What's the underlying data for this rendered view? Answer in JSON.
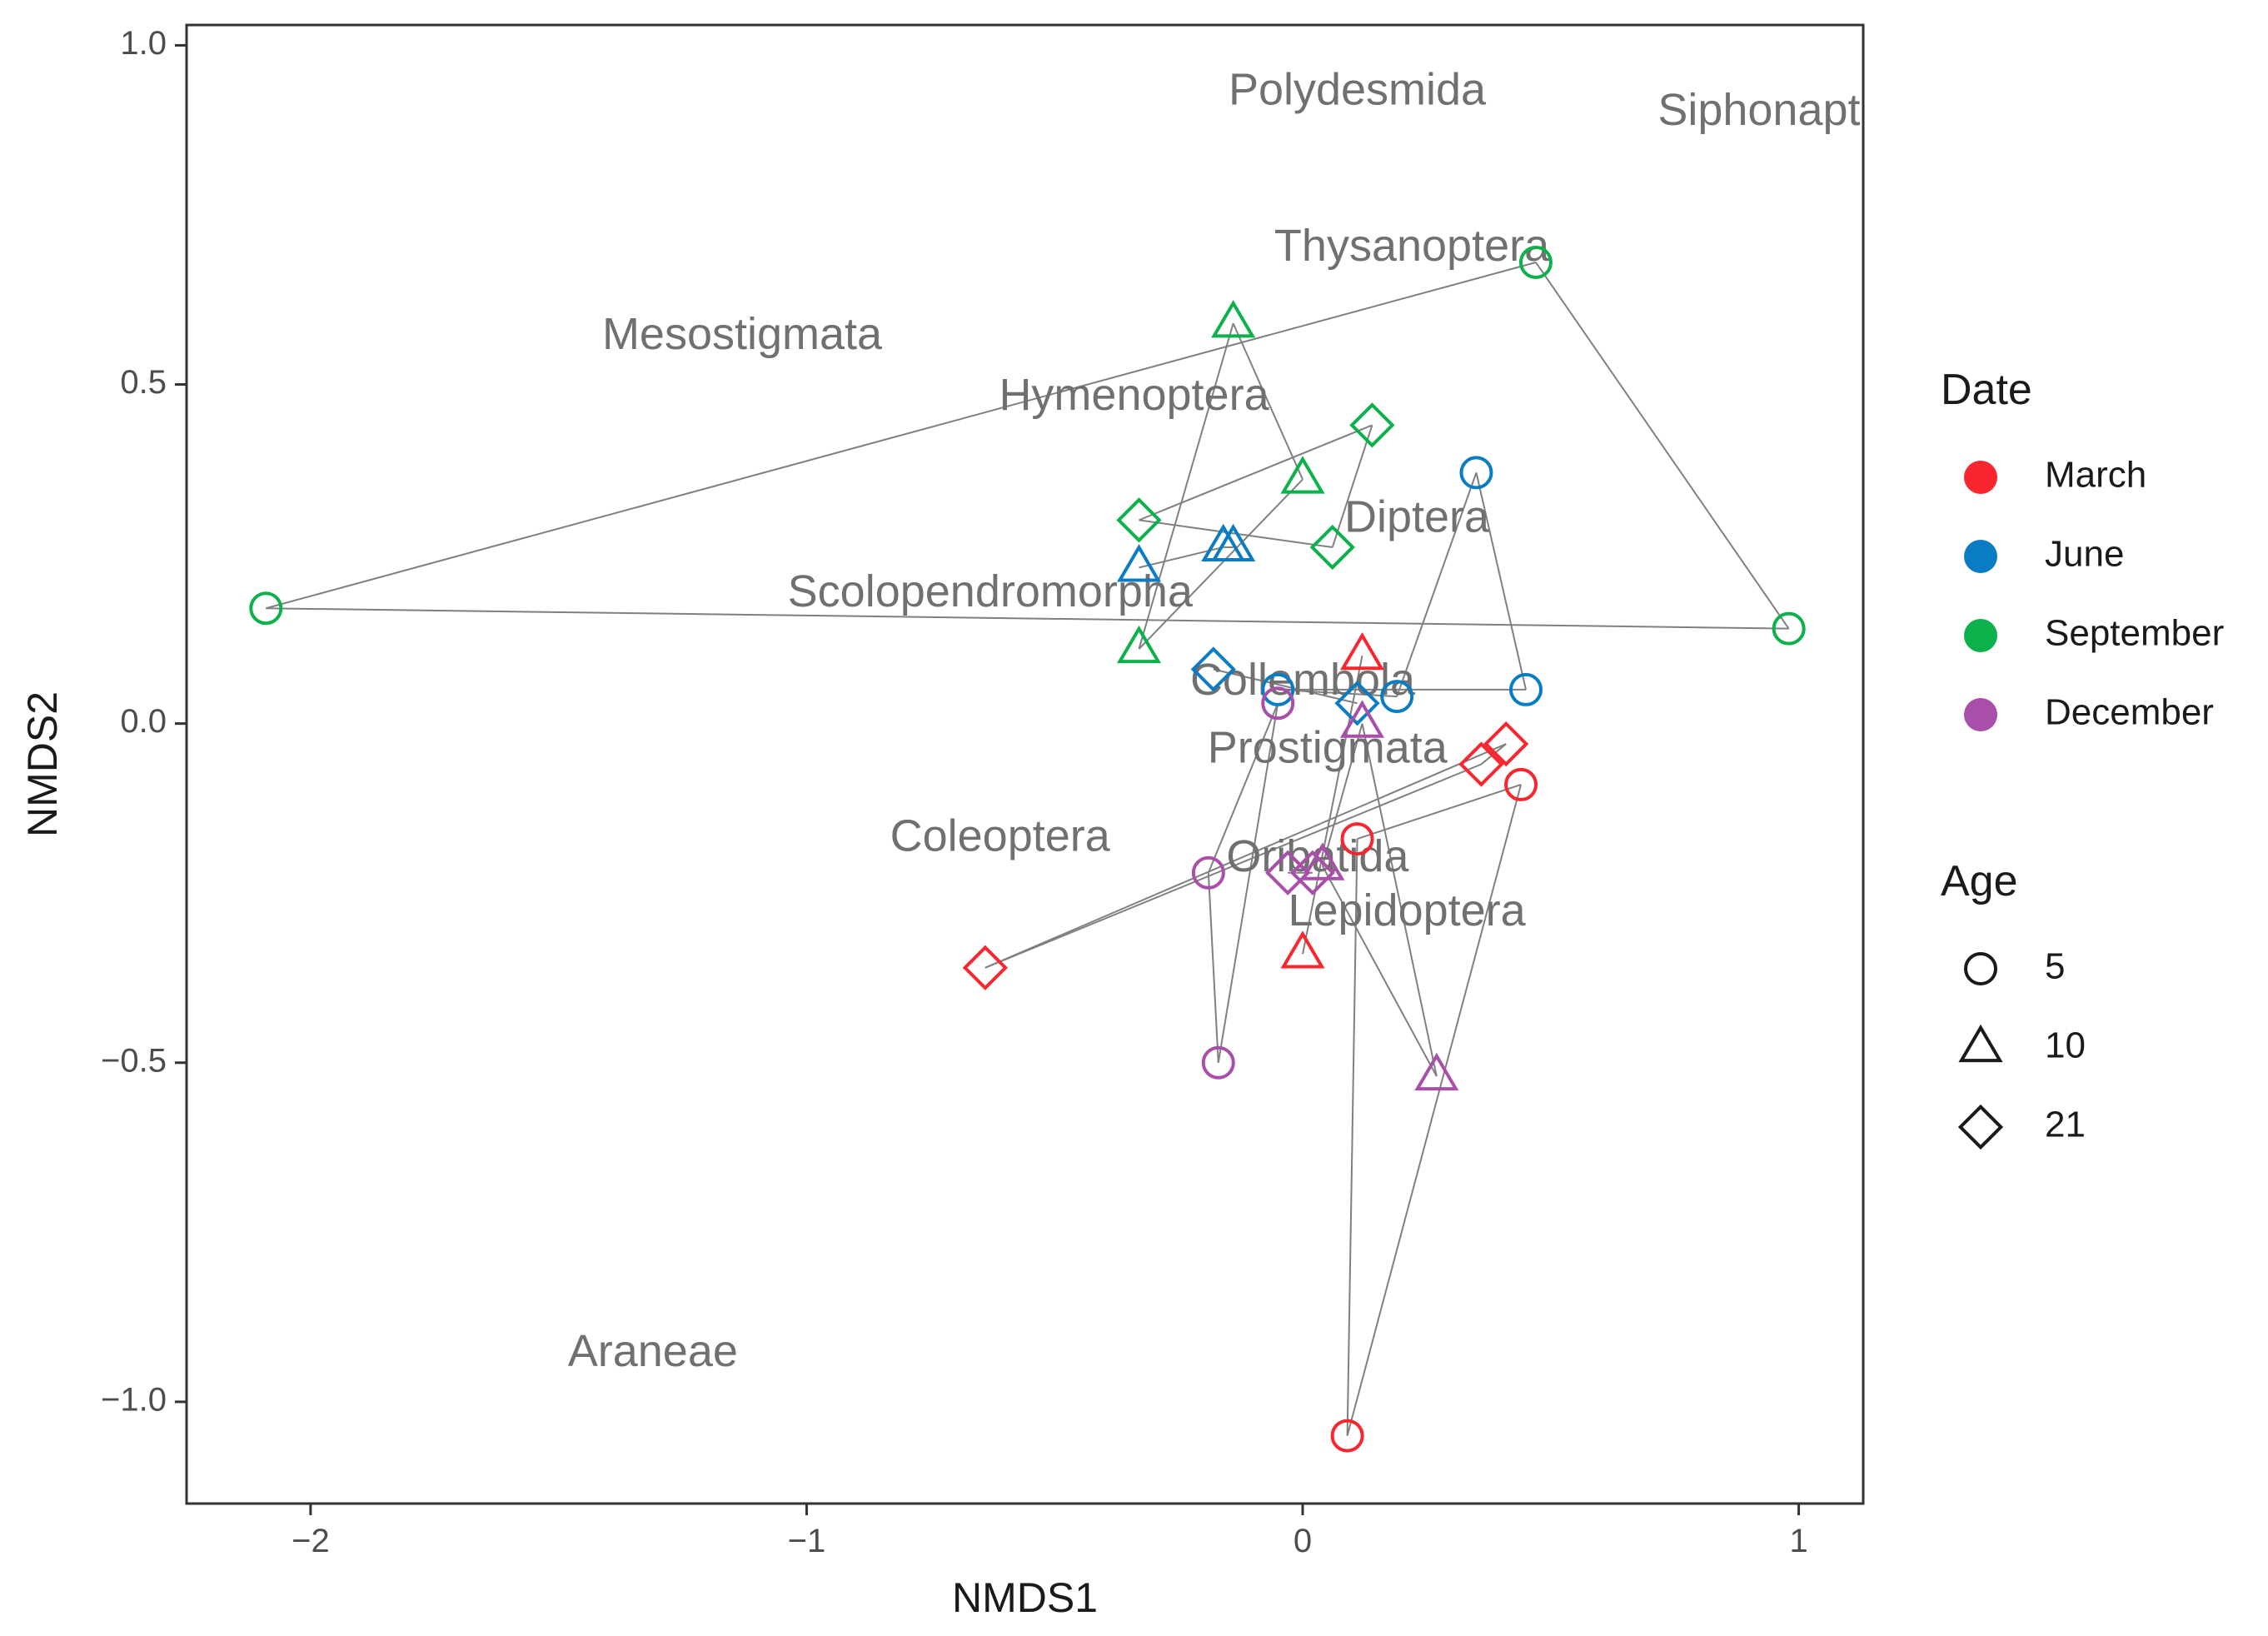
{
  "chart_data": {
    "type": "scatter",
    "title": "",
    "xlabel": "NMDS1",
    "ylabel": "NMDS2",
    "xlim": [
      -2.25,
      1.13
    ],
    "ylim": [
      -1.15,
      1.03
    ],
    "xticks": [
      -2,
      -1,
      0,
      1
    ],
    "yticks": [
      -1.0,
      -0.5,
      0.0,
      0.5,
      1.0
    ],
    "xtick_labels": [
      "−2",
      "−1",
      "0",
      "1"
    ],
    "ytick_labels": [
      "−1.0",
      "−0.5",
      "0.0",
      "0.5",
      "1.0"
    ],
    "grid": false,
    "legend": {
      "position": "right",
      "date_title": "Date",
      "age_title": "Age",
      "dates": [
        {
          "name": "March",
          "color": "#f8262f"
        },
        {
          "name": "June",
          "color": "#0a7dc2"
        },
        {
          "name": "September",
          "color": "#0db14b"
        },
        {
          "name": "December",
          "color": "#a84fa9"
        }
      ],
      "ages": [
        {
          "name": "5",
          "shape": "circle"
        },
        {
          "name": "10",
          "shape": "triangle"
        },
        {
          "name": "21",
          "shape": "diamond"
        }
      ]
    },
    "points": [
      {
        "date": "March",
        "age": "5",
        "x": 0.44,
        "y": -0.09
      },
      {
        "date": "March",
        "age": "5",
        "x": 0.11,
        "y": -0.17
      },
      {
        "date": "March",
        "age": "5",
        "x": 0.09,
        "y": -1.05
      },
      {
        "date": "March",
        "age": "10",
        "x": 0.12,
        "y": 0.1
      },
      {
        "date": "March",
        "age": "10",
        "x": 0.0,
        "y": -0.34
      },
      {
        "date": "March",
        "age": "21",
        "x": 0.41,
        "y": -0.03
      },
      {
        "date": "March",
        "age": "21",
        "x": 0.36,
        "y": -0.06
      },
      {
        "date": "March",
        "age": "21",
        "x": -0.64,
        "y": -0.36
      },
      {
        "date": "June",
        "age": "5",
        "x": 0.35,
        "y": 0.37
      },
      {
        "date": "June",
        "age": "5",
        "x": 0.45,
        "y": 0.05
      },
      {
        "date": "June",
        "age": "5",
        "x": 0.19,
        "y": 0.04
      },
      {
        "date": "June",
        "age": "5",
        "x": -0.05,
        "y": 0.05
      },
      {
        "date": "June",
        "age": "10",
        "x": -0.33,
        "y": 0.23
      },
      {
        "date": "June",
        "age": "10",
        "x": -0.16,
        "y": 0.26
      },
      {
        "date": "June",
        "age": "10",
        "x": -0.14,
        "y": 0.26
      },
      {
        "date": "June",
        "age": "21",
        "x": -0.18,
        "y": 0.08
      },
      {
        "date": "June",
        "age": "21",
        "x": 0.11,
        "y": 0.03
      },
      {
        "date": "September",
        "age": "5",
        "x": -2.09,
        "y": 0.17
      },
      {
        "date": "September",
        "age": "5",
        "x": 0.47,
        "y": 0.68
      },
      {
        "date": "September",
        "age": "5",
        "x": 0.98,
        "y": 0.14
      },
      {
        "date": "September",
        "age": "10",
        "x": -0.14,
        "y": 0.59
      },
      {
        "date": "September",
        "age": "10",
        "x": 0.0,
        "y": 0.36
      },
      {
        "date": "September",
        "age": "10",
        "x": -0.33,
        "y": 0.11
      },
      {
        "date": "September",
        "age": "21",
        "x": 0.14,
        "y": 0.44
      },
      {
        "date": "September",
        "age": "21",
        "x": -0.33,
        "y": 0.3
      },
      {
        "date": "September",
        "age": "21",
        "x": 0.06,
        "y": 0.26
      },
      {
        "date": "December",
        "age": "5",
        "x": -0.05,
        "y": 0.03
      },
      {
        "date": "December",
        "age": "5",
        "x": -0.19,
        "y": -0.22
      },
      {
        "date": "December",
        "age": "5",
        "x": -0.17,
        "y": -0.5
      },
      {
        "date": "December",
        "age": "10",
        "x": 0.12,
        "y": 0.0
      },
      {
        "date": "December",
        "age": "10",
        "x": 0.04,
        "y": -0.21
      },
      {
        "date": "December",
        "age": "10",
        "x": 0.27,
        "y": -0.52
      },
      {
        "date": "December",
        "age": "21",
        "x": -0.03,
        "y": -0.22
      },
      {
        "date": "December",
        "age": "21",
        "x": 0.02,
        "y": -0.22
      }
    ],
    "segments": [
      [
        -2.09,
        0.17,
        0.47,
        0.68
      ],
      [
        -2.09,
        0.17,
        0.98,
        0.14
      ],
      [
        0.47,
        0.68,
        0.98,
        0.14
      ],
      [
        -0.14,
        0.59,
        0.0,
        0.36
      ],
      [
        -0.14,
        0.59,
        -0.33,
        0.11
      ],
      [
        0.0,
        0.36,
        -0.33,
        0.11
      ],
      [
        -0.33,
        0.3,
        0.14,
        0.44
      ],
      [
        -0.33,
        0.3,
        0.06,
        0.26
      ],
      [
        0.14,
        0.44,
        0.06,
        0.26
      ],
      [
        0.35,
        0.37,
        0.45,
        0.05
      ],
      [
        0.35,
        0.37,
        0.19,
        0.04
      ],
      [
        -0.05,
        0.05,
        0.45,
        0.05
      ],
      [
        -0.05,
        0.05,
        0.19,
        0.04
      ],
      [
        -0.33,
        0.23,
        -0.16,
        0.26
      ],
      [
        -0.16,
        0.26,
        -0.14,
        0.26
      ],
      [
        -0.18,
        0.08,
        0.11,
        0.03
      ],
      [
        0.44,
        -0.09,
        0.11,
        -0.17
      ],
      [
        0.44,
        -0.09,
        0.09,
        -1.05
      ],
      [
        0.11,
        -0.17,
        0.09,
        -1.05
      ],
      [
        0.12,
        0.1,
        0.0,
        -0.34
      ],
      [
        -0.64,
        -0.36,
        0.41,
        -0.03
      ],
      [
        -0.64,
        -0.36,
        0.36,
        -0.06
      ],
      [
        0.41,
        -0.03,
        0.36,
        -0.06
      ],
      [
        -0.05,
        0.03,
        -0.19,
        -0.22
      ],
      [
        -0.05,
        0.03,
        -0.17,
        -0.5
      ],
      [
        -0.19,
        -0.22,
        -0.17,
        -0.5
      ],
      [
        0.12,
        0.0,
        0.04,
        -0.21
      ],
      [
        0.12,
        0.0,
        0.27,
        -0.52
      ],
      [
        0.04,
        -0.21,
        0.27,
        -0.52
      ],
      [
        -0.03,
        -0.22,
        0.02,
        -0.22
      ]
    ],
    "species_labels": [
      {
        "text": "Polydesmida",
        "x": 0.11,
        "y": 0.93
      },
      {
        "text": "Siphonapt",
        "x": 0.92,
        "y": 0.9
      },
      {
        "text": "Thysanoptera",
        "x": 0.22,
        "y": 0.7
      },
      {
        "text": "Mesostigmata",
        "x": -1.13,
        "y": 0.57
      },
      {
        "text": "Hymenoptera",
        "x": -0.34,
        "y": 0.48
      },
      {
        "text": "Diptera",
        "x": 0.23,
        "y": 0.3
      },
      {
        "text": "Scolopendromorpha",
        "x": -0.63,
        "y": 0.19
      },
      {
        "text": "Collembola",
        "x": 0.0,
        "y": 0.06
      },
      {
        "text": "Prostigmata",
        "x": 0.05,
        "y": -0.04
      },
      {
        "text": "Coleoptera",
        "x": -0.61,
        "y": -0.17
      },
      {
        "text": "Oribatida",
        "x": 0.03,
        "y": -0.2
      },
      {
        "text": "Lepidoptera",
        "x": 0.21,
        "y": -0.28
      },
      {
        "text": "Araneae",
        "x": -1.31,
        "y": -0.93
      }
    ]
  }
}
